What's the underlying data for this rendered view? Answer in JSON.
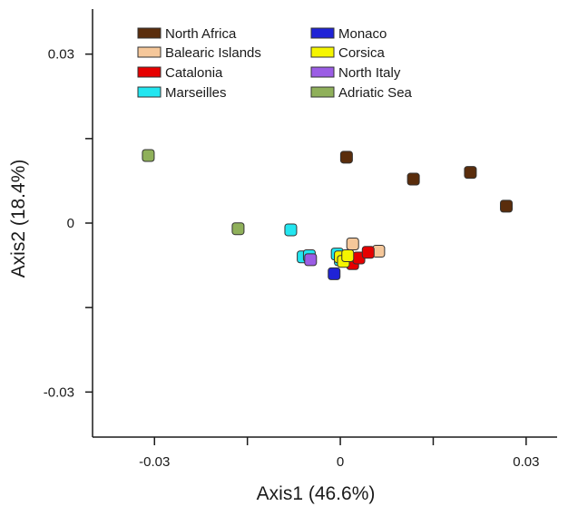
{
  "chart_data": {
    "type": "scatter",
    "title": "",
    "xlabel": "Axis1 (46.6%)",
    "ylabel": "Axis2 (18.4%)",
    "xlim": [
      -0.04,
      0.035
    ],
    "ylim": [
      -0.038,
      0.038
    ],
    "xticks": [
      -0.03,
      0,
      0.03
    ],
    "xtick_labels": [
      "-0.03",
      "0",
      "0.03"
    ],
    "yticks": [
      0.03,
      0,
      -0.03
    ],
    "ytick_labels": [
      "0.03",
      "0",
      "-0.03"
    ],
    "minor_ticks": true,
    "grid": false,
    "legend_position": "top-center",
    "series": [
      {
        "name": "North Africa",
        "color": "#5a2d0c",
        "points": [
          [
            0.001,
            0.0117
          ],
          [
            0.0118,
            0.0078
          ],
          [
            0.021,
            0.009
          ],
          [
            0.0268,
            0.003
          ]
        ]
      },
      {
        "name": "Balearic Islands",
        "color": "#f5c79a",
        "points": [
          [
            0.002,
            -0.0037
          ],
          [
            0.0062,
            -0.005
          ]
        ]
      },
      {
        "name": "Catalonia",
        "color": "#e60000",
        "points": [
          [
            0.002,
            -0.0072
          ],
          [
            0.003,
            -0.0062
          ],
          [
            0.0045,
            -0.0052
          ]
        ]
      },
      {
        "name": "Marseilles",
        "color": "#22e6f0",
        "points": [
          [
            -0.008,
            -0.0012
          ],
          [
            -0.006,
            -0.006
          ],
          [
            -0.005,
            -0.0058
          ],
          [
            -0.0005,
            -0.0055
          ],
          [
            0.0,
            -0.0065
          ]
        ]
      },
      {
        "name": "Monaco",
        "color": "#1f23d6",
        "points": [
          [
            -0.001,
            -0.009
          ]
        ]
      },
      {
        "name": "Corsica",
        "color": "#f5f500",
        "points": [
          [
            0.0,
            -0.006
          ],
          [
            0.0005,
            -0.0068
          ],
          [
            0.0012,
            -0.0058
          ]
        ]
      },
      {
        "name": "North Italy",
        "color": "#9b5de5",
        "points": [
          [
            -0.0048,
            -0.0065
          ]
        ]
      },
      {
        "name": "Adriatic Sea",
        "color": "#8fb05a",
        "points": [
          [
            -0.031,
            0.012
          ],
          [
            -0.0165,
            -0.001
          ]
        ]
      }
    ]
  }
}
